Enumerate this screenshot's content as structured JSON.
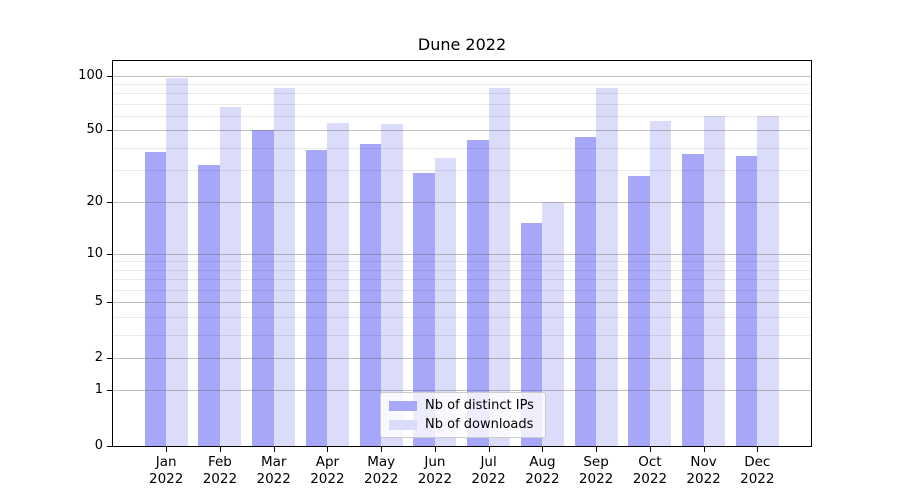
{
  "figure": {
    "background": "#ffffff"
  },
  "chart_data": {
    "type": "bar",
    "title": "Dune 2022",
    "categories": [
      "Jan 2022",
      "Feb 2022",
      "Mar 2022",
      "Apr 2022",
      "May 2022",
      "Jun 2022",
      "Jul 2022",
      "Aug 2022",
      "Sep 2022",
      "Oct 2022",
      "Nov 2022",
      "Dec 2022"
    ],
    "x_tick_line1": [
      "Jan",
      "Feb",
      "Mar",
      "Apr",
      "May",
      "Jun",
      "Jul",
      "Aug",
      "Sep",
      "Oct",
      "Nov",
      "Dec"
    ],
    "x_tick_line2": "2022",
    "series": [
      {
        "name": "Nb of distinct IPs",
        "color": "#a7a7fa",
        "values": [
          38,
          32,
          50,
          39,
          42,
          29,
          44,
          15,
          46,
          28,
          37,
          36
        ]
      },
      {
        "name": "Nb of downloads",
        "color": "#dbdbfa",
        "values": [
          97,
          67,
          86,
          55,
          54,
          35,
          86,
          20,
          86,
          56,
          60,
          60
        ]
      }
    ],
    "yscale": "log-like (log10 of 1+y), linear at 0",
    "ylim": [
      0,
      120
    ],
    "y_major_ticks": [
      0,
      1,
      2,
      5,
      10,
      20,
      50,
      100
    ],
    "y_minor_ticks": [
      3,
      4,
      6,
      7,
      8,
      9,
      30,
      40,
      60,
      70,
      80,
      90
    ],
    "grid": "major and minor horizontal gridlines, drawn over bars",
    "legend_position": "lower center inside plot",
    "xlabel": "",
    "ylabel": ""
  },
  "colors": {
    "major_grid": "#b9b9b9",
    "minor_grid": "#ebebeb",
    "axis": "#000000",
    "title_text": "#000000",
    "tick_text": "#000000"
  }
}
